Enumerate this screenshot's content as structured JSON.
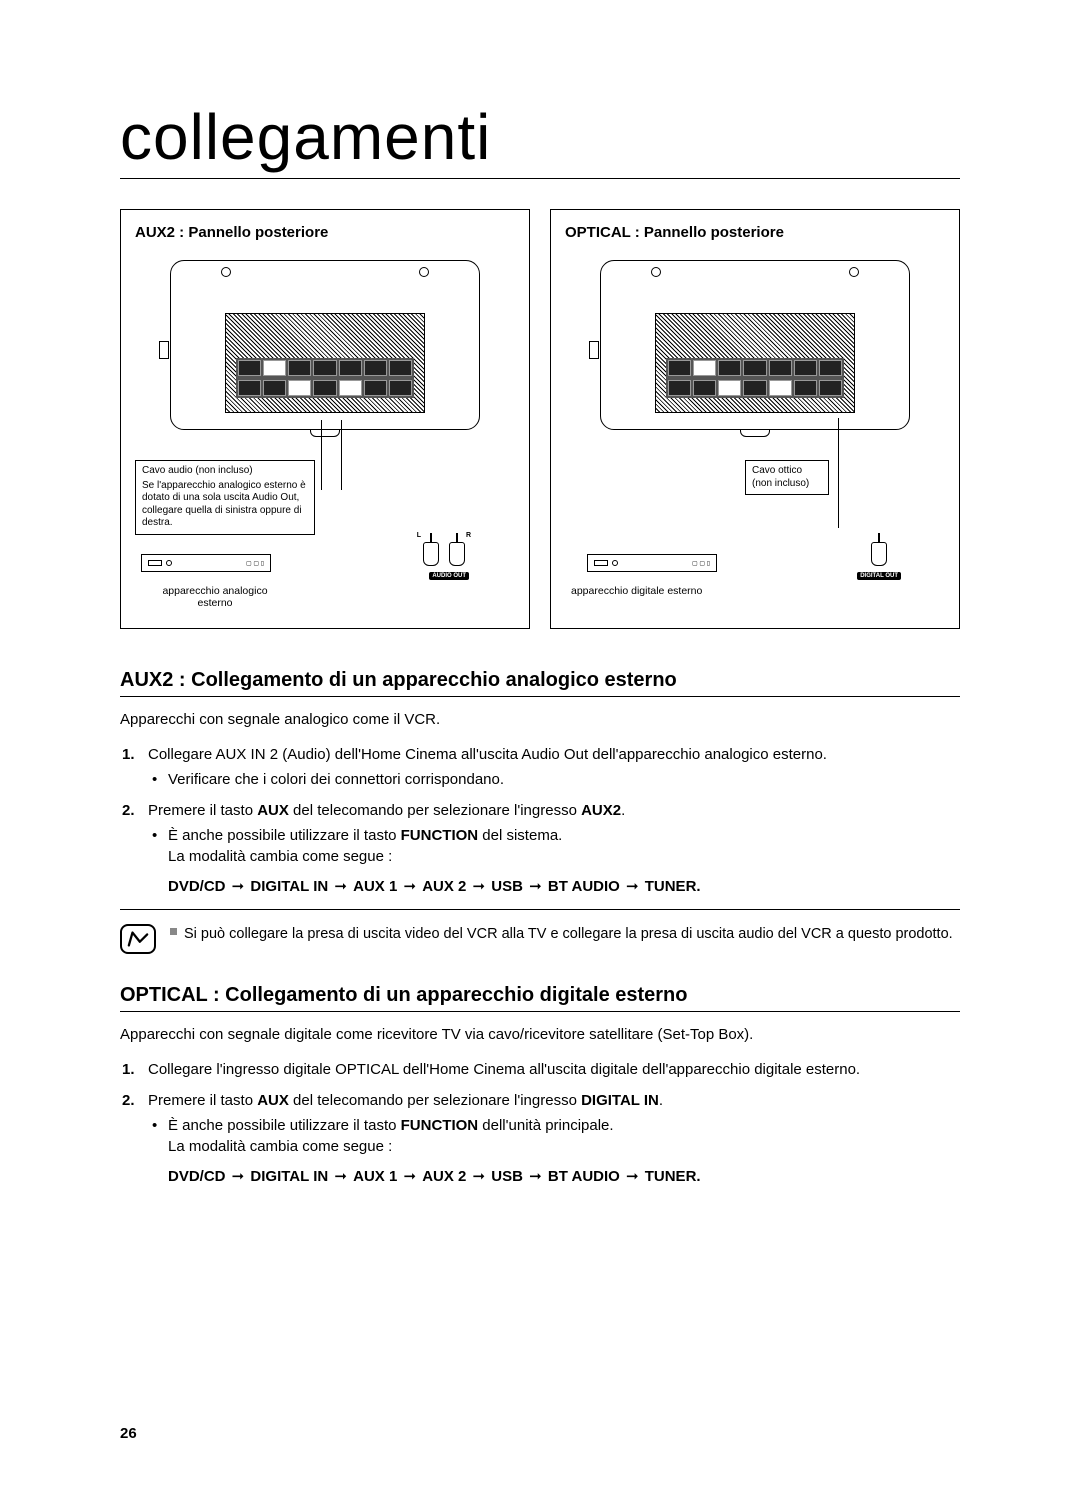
{
  "page_title": "collegamenti",
  "page_number": "26",
  "diagrams": {
    "left": {
      "header": "AUX2 : Pannello posteriore",
      "cable_note_title": "Cavo audio (non incluso)",
      "cable_note_body": "Se l'apparecchio analogico esterno è dotato di una sola uscita Audio Out, collegare quella di sinistra oppure di destra.",
      "ext_device_label": "apparecchio analogico esterno",
      "port_label": "AUDIO OUT",
      "lr": {
        "l": "L",
        "r": "R"
      }
    },
    "right": {
      "header": "OPTICAL : Pannello posteriore",
      "cable_note_title": "Cavo ottico",
      "cable_note_body": "(non incluso)",
      "ext_device_label": "apparecchio digitale esterno",
      "port_label": "DIGITAL OUT"
    }
  },
  "sections": {
    "aux2": {
      "heading": "AUX2 : Collegamento di un apparecchio analogico esterno",
      "intro": "Apparecchi con segnale analogico come il VCR.",
      "step1": "Collegare AUX IN 2 (Audio) dell'Home Cinema all'uscita Audio Out dell'apparecchio analogico esterno.",
      "step1_sub": "Verificare che i colori dei connettori corrispondano.",
      "step2_pre": "Premere il tasto ",
      "step2_b1": "AUX",
      "step2_mid": " del telecomando per selezionare l'ingresso ",
      "step2_b2": "AUX2",
      "step2_post": ".",
      "step2_sub_pre": "È anche possibile utilizzare il tasto ",
      "step2_sub_b": "FUNCTION",
      "step2_sub_post": " del sistema.",
      "step2_sub2": "La modalità cambia come segue :",
      "note": "Si può collegare la presa di uscita video del VCR alla TV e collegare la presa di uscita audio del VCR a questo prodotto."
    },
    "optical": {
      "heading": "OPTICAL : Collegamento di un apparecchio digitale esterno",
      "intro": "Apparecchi con segnale digitale come  ricevitore TV via cavo/ricevitore satellitare (Set-Top Box).",
      "step1": "Collegare l'ingresso digitale OPTICAL dell'Home Cinema all'uscita digitale dell'apparecchio digitale esterno.",
      "step2_pre": "Premere il tasto ",
      "step2_b1": "AUX",
      "step2_mid": " del telecomando per selezionare l'ingresso ",
      "step2_b2": "DIGITAL IN",
      "step2_post": ".",
      "step2_sub_pre": "È anche possibile utilizzare il tasto ",
      "step2_sub_b": "FUNCTION",
      "step2_sub_post": " dell'unità principale.",
      "step2_sub2": "La modalità cambia come segue :"
    }
  },
  "mode_chain": [
    "DVD/CD",
    "DIGITAL IN",
    "AUX 1",
    "AUX 2",
    "USB",
    "BT AUDIO",
    "TUNER"
  ]
}
